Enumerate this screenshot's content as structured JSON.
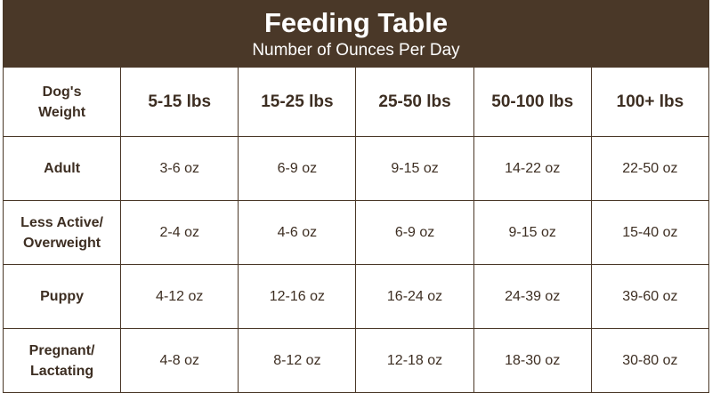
{
  "header": {
    "title": "Feeding Table",
    "subtitle": "Number of Ounces Per Day"
  },
  "columns": [
    "Dog's Weight",
    "5-15 lbs",
    "15-25 lbs",
    "25-50 lbs",
    "50-100 lbs",
    "100+ lbs"
  ],
  "rows": [
    {
      "label": "Adult",
      "values": [
        "3-6 oz",
        "6-9 oz",
        "9-15 oz",
        "14-22 oz",
        "22-50 oz"
      ]
    },
    {
      "label": "Less Active/ Overweight",
      "values": [
        "2-4 oz",
        "4-6 oz",
        "6-9 oz",
        "9-15 oz",
        "15-40 oz"
      ]
    },
    {
      "label": "Puppy",
      "values": [
        "4-12 oz",
        "12-16 oz",
        "16-24 oz",
        "24-39 oz",
        "39-60 oz"
      ]
    },
    {
      "label": "Pregnant/ Lactating",
      "values": [
        "4-8 oz",
        "8-12 oz",
        "12-18 oz",
        "18-30 oz",
        "30-80 oz"
      ]
    }
  ],
  "colors": {
    "header_bg": "#4a3828",
    "text": "#3d2e22"
  }
}
